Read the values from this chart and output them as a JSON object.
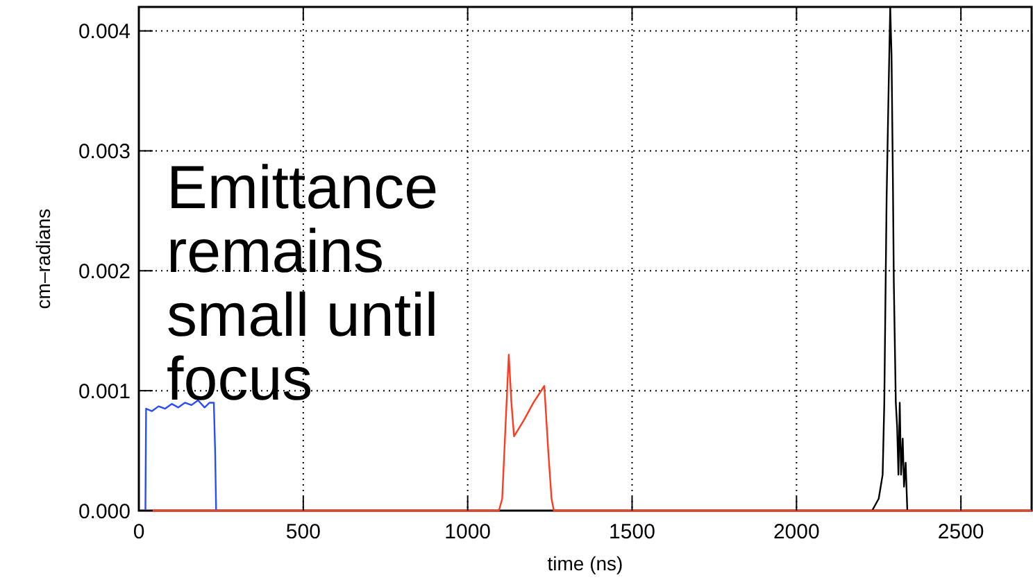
{
  "chart_data": {
    "type": "line",
    "xlabel": "time (ns)",
    "ylabel": "cm–radians",
    "xlim": [
      0,
      2715
    ],
    "ylim": [
      0,
      0.0042
    ],
    "xticks": [
      0,
      500,
      1000,
      1500,
      2000,
      2500
    ],
    "yticks": [
      {
        "value": 0,
        "label": "0.000"
      },
      {
        "value": 0.001,
        "label": "0.001"
      },
      {
        "value": 0.002,
        "label": "0.002"
      },
      {
        "value": 0.003,
        "label": "0.003"
      },
      {
        "value": 0.004,
        "label": "0.004"
      }
    ],
    "grid": true,
    "line_style": "solid",
    "annotations": [
      "Emittance remains small until focus"
    ],
    "series": [
      {
        "color": "#000000",
        "x": [
          2230,
          2250,
          2262,
          2267,
          2274,
          2280,
          2285,
          2289,
          2293,
          2296,
          2302,
          2306,
          2310,
          2314,
          2318,
          2323,
          2327,
          2332,
          2337
        ],
        "values": [
          0,
          0.0001,
          0.0003,
          0.0009,
          0.0026,
          0.0035,
          0.0042,
          0.0038,
          0.0028,
          0.0019,
          0.0009,
          0.0007,
          0.0003,
          0.0009,
          0.0003,
          0.0006,
          0.0002,
          0.0004,
          0
        ]
      },
      {
        "color": "#2a4cff",
        "x": [
          0,
          20,
          22,
          40,
          60,
          80,
          100,
          120,
          140,
          160,
          180,
          200,
          215,
          228,
          232,
          235
        ],
        "values": [
          0,
          0,
          0.00085,
          0.00083,
          0.00087,
          0.00085,
          0.00089,
          0.00086,
          0.0009,
          0.00088,
          0.00092,
          0.00086,
          0.0009,
          0.0009,
          0.0005,
          0
        ]
      },
      {
        "color": "#ff3b1f",
        "x": [
          0,
          1095,
          1105,
          1125,
          1133,
          1141,
          1170,
          1200,
          1233,
          1245,
          1255,
          1262,
          2715
        ],
        "values": [
          0,
          0,
          0.0001,
          0.0013,
          0.0009,
          0.00062,
          0.00075,
          0.0009,
          0.00104,
          0.0005,
          0.0001,
          0,
          0
        ]
      }
    ]
  }
}
